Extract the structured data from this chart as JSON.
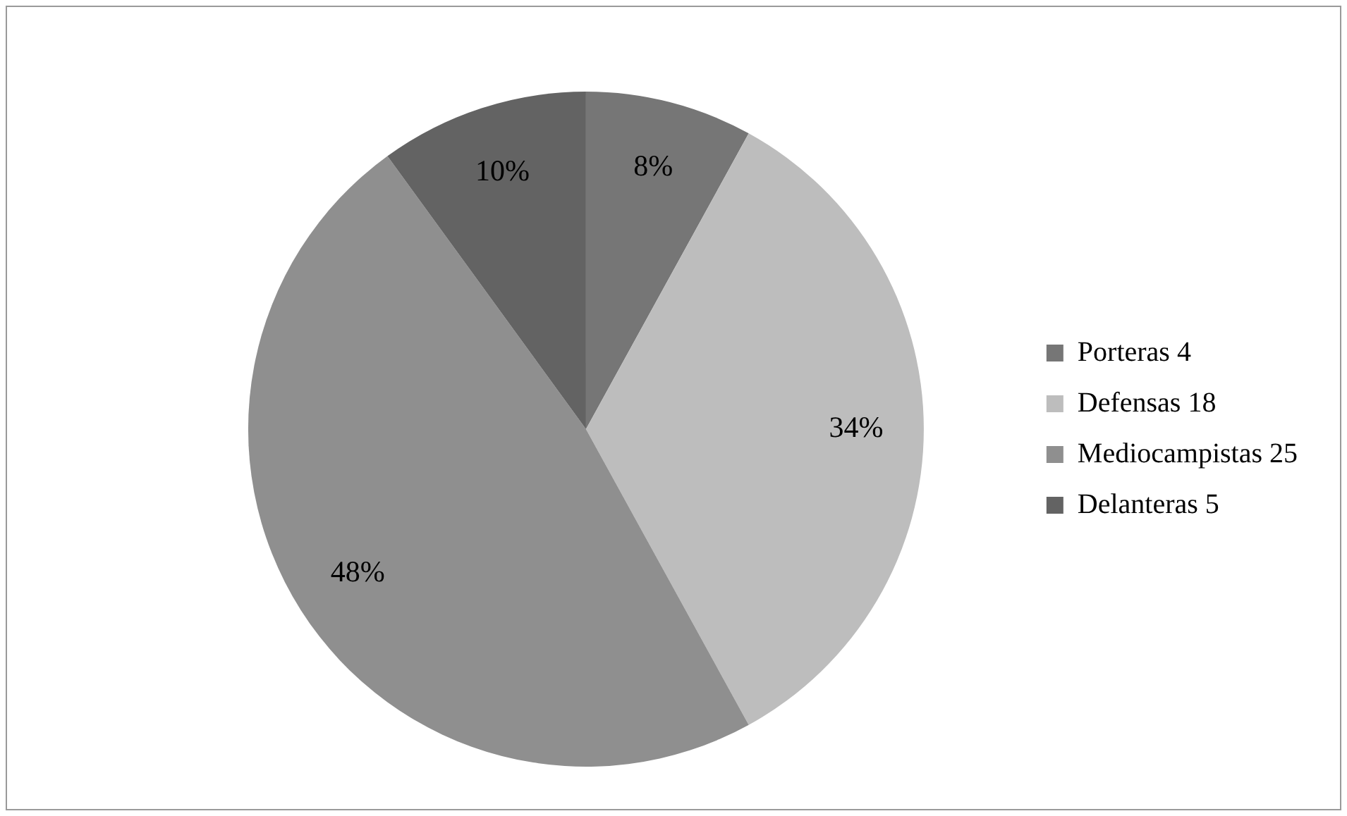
{
  "chart_data": {
    "type": "pie",
    "categories": [
      "Porteras 4",
      "Defensas 18",
      "Mediocampistas 25",
      "Delanteras 5"
    ],
    "values": [
      8,
      34,
      48,
      10
    ],
    "value_labels": [
      "8%",
      "34%",
      "48%",
      "10%"
    ],
    "colors": [
      "#767676",
      "#bdbdbd",
      "#8f8f8f",
      "#636363"
    ],
    "legend": "right"
  }
}
